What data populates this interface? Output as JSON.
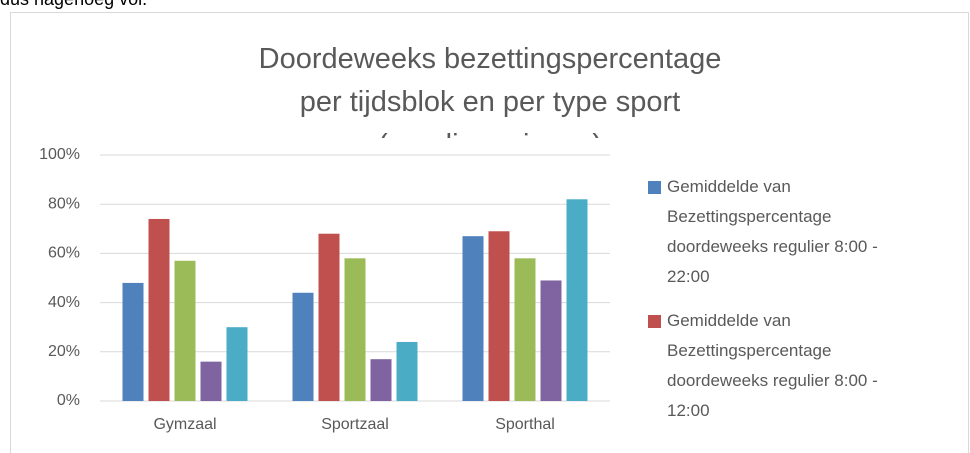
{
  "note": "dus nagenoeg vol.",
  "chart_data": {
    "type": "bar",
    "title": "Doordeweeks bezettingspercentage per tijdsblok en per type sport (regulier seizoen)",
    "categories": [
      "Gymzaal",
      "Sportzaal",
      "Sporthal"
    ],
    "series": [
      {
        "name": "Gemiddelde van Bezettingspercentage doordeweeks regulier 8:00 - 22:00",
        "color": "#4f81bd",
        "values": [
          48,
          44,
          67
        ]
      },
      {
        "name": "Gemiddelde van Bezettingspercentage doordeweeks regulier 8:00 - 12:00",
        "color": "#c0504d",
        "values": [
          74,
          68,
          69
        ]
      },
      {
        "color": "#9bbb59",
        "values": [
          57,
          58,
          58
        ]
      },
      {
        "color": "#8064a2",
        "values": [
          16,
          17,
          49
        ]
      },
      {
        "color": "#4bacc6",
        "values": [
          30,
          24,
          82
        ]
      }
    ],
    "ylim": [
      0,
      100
    ],
    "yticks": [
      {
        "value": 0,
        "label": "0%"
      },
      {
        "value": 20,
        "label": "20%"
      },
      {
        "value": 40,
        "label": "40%"
      },
      {
        "value": 60,
        "label": "60%"
      },
      {
        "value": 80,
        "label": "80%"
      },
      {
        "value": 100,
        "label": "100%"
      }
    ],
    "grid": true
  }
}
